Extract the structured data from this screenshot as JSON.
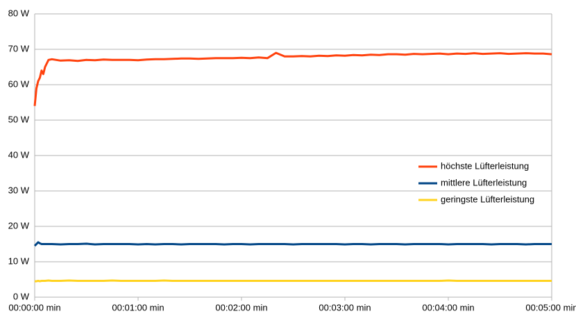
{
  "chart_data": {
    "type": "line",
    "x": [
      0,
      1,
      2,
      3,
      4,
      5,
      6,
      8,
      10,
      15,
      20,
      25,
      30,
      35,
      40,
      45,
      50,
      55,
      60,
      65,
      70,
      75,
      80,
      85,
      90,
      95,
      100,
      105,
      110,
      115,
      120,
      125,
      130,
      135,
      140,
      145,
      150,
      155,
      160,
      165,
      170,
      175,
      180,
      185,
      190,
      195,
      200,
      205,
      210,
      215,
      220,
      225,
      230,
      235,
      240,
      245,
      250,
      255,
      260,
      265,
      270,
      275,
      280,
      285,
      290,
      295,
      300
    ],
    "series": [
      {
        "name": "höchste Lüfterleistung",
        "color": "#ff420e",
        "values": [
          54,
          59,
          61,
          62,
          64,
          63,
          65,
          67,
          67.2,
          66.8,
          66.9,
          66.7,
          67,
          66.9,
          67.1,
          67,
          67,
          67,
          66.9,
          67.1,
          67.2,
          67.2,
          67.3,
          67.4,
          67.4,
          67.3,
          67.4,
          67.5,
          67.5,
          67.5,
          67.6,
          67.5,
          67.7,
          67.5,
          69,
          68,
          68,
          68.1,
          68,
          68.2,
          68.1,
          68.3,
          68.2,
          68.4,
          68.3,
          68.5,
          68.4,
          68.6,
          68.6,
          68.5,
          68.7,
          68.6,
          68.7,
          68.8,
          68.6,
          68.8,
          68.7,
          68.9,
          68.7,
          68.8,
          68.9,
          68.7,
          68.8,
          68.9,
          68.8,
          68.8,
          68.6
        ]
      },
      {
        "name": "mittlere Lüfterleistung",
        "color": "#004586",
        "values": [
          14.5,
          15,
          15.5,
          15.2,
          15,
          15,
          15,
          15,
          15,
          14.9,
          15,
          15,
          15.1,
          14.9,
          15,
          15,
          15,
          15,
          14.9,
          15,
          14.9,
          15,
          15,
          14.9,
          15,
          15,
          15,
          15,
          14.9,
          15,
          15,
          14.9,
          15,
          15,
          15,
          15,
          14.9,
          15,
          15,
          15,
          15,
          15,
          14.9,
          15,
          15,
          14.9,
          15,
          15,
          15,
          14.9,
          15,
          15,
          15,
          15,
          14.9,
          15,
          15,
          15,
          15,
          14.9,
          15,
          15,
          15,
          14.9,
          15,
          15,
          15
        ]
      },
      {
        "name": "geringste Lüfterleistung",
        "color": "#ffd320",
        "values": [
          4.5,
          4.5,
          4.6,
          4.5,
          4.6,
          4.6,
          4.6,
          4.7,
          4.6,
          4.6,
          4.7,
          4.6,
          4.6,
          4.6,
          4.6,
          4.7,
          4.6,
          4.6,
          4.6,
          4.6,
          4.6,
          4.7,
          4.6,
          4.6,
          4.6,
          4.6,
          4.6,
          4.6,
          4.6,
          4.6,
          4.6,
          4.6,
          4.6,
          4.6,
          4.6,
          4.6,
          4.6,
          4.6,
          4.6,
          4.6,
          4.6,
          4.6,
          4.6,
          4.6,
          4.6,
          4.6,
          4.6,
          4.6,
          4.6,
          4.6,
          4.6,
          4.6,
          4.6,
          4.6,
          4.7,
          4.6,
          4.6,
          4.6,
          4.6,
          4.6,
          4.6,
          4.6,
          4.6,
          4.6,
          4.6,
          4.6,
          4.6
        ]
      }
    ],
    "xlim": [
      0,
      300
    ],
    "xticks": [
      {
        "value": 0,
        "label": "00:00:00 min"
      },
      {
        "value": 60,
        "label": "00:01:00 min"
      },
      {
        "value": 120,
        "label": "00:02:00 min"
      },
      {
        "value": 180,
        "label": "00:03:00 min"
      },
      {
        "value": 240,
        "label": "00:04:00 min"
      },
      {
        "value": 300,
        "label": "00:05:00 min"
      }
    ],
    "ylim": [
      0,
      80
    ],
    "yticks": [
      {
        "value": 0,
        "label": "0 W"
      },
      {
        "value": 10,
        "label": "10 W"
      },
      {
        "value": 20,
        "label": "20 W"
      },
      {
        "value": 30,
        "label": "30 W"
      },
      {
        "value": 40,
        "label": "40 W"
      },
      {
        "value": 50,
        "label": "50 W"
      },
      {
        "value": 60,
        "label": "60 W"
      },
      {
        "value": 70,
        "label": "70 W"
      },
      {
        "value": 80,
        "label": "80 W"
      }
    ],
    "grid": true,
    "legend": "right"
  }
}
